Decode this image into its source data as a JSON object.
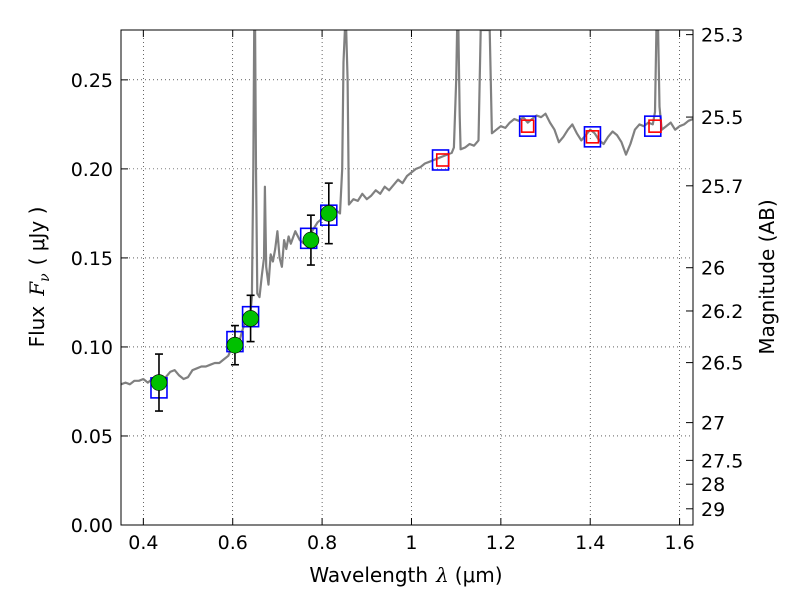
{
  "chart_data": {
    "type": "scatter",
    "title": "",
    "xlabel_pre": "Wavelength",
    "xlabel_sym": "λ",
    "xlabel_unit": "(μm)",
    "ylabel_pre": "Flux",
    "ylabel_sym_main": "F",
    "ylabel_sym_sub": "ν",
    "ylabel_unit": "( μJy )",
    "ylabel_right": "Magnitude (AB)",
    "xlim": [
      0.35,
      1.63
    ],
    "ylim": [
      0.0,
      0.278
    ],
    "grid": true,
    "x_ticks": [
      0.4,
      0.6,
      0.8,
      1.0,
      1.2,
      1.4,
      1.6
    ],
    "x_tick_labels": [
      "0.4",
      "0.6",
      "0.8",
      "1",
      "1.2",
      "1.4",
      "1.6"
    ],
    "y_ticks": [
      0.0,
      0.05,
      0.1,
      0.15,
      0.2,
      0.25
    ],
    "y_tick_labels": [
      "0.00",
      "0.05",
      "0.10",
      "0.15",
      "0.20",
      "0.25"
    ],
    "right_ticks": [
      {
        "flux": 0.2754,
        "label": "25.3"
      },
      {
        "flux": 0.2291,
        "label": "25.5"
      },
      {
        "flux": 0.1905,
        "label": "25.7"
      },
      {
        "flux": 0.1445,
        "label": "26"
      },
      {
        "flux": 0.1202,
        "label": "26.2"
      },
      {
        "flux": 0.0912,
        "label": "26.5"
      },
      {
        "flux": 0.0575,
        "label": "27"
      },
      {
        "flux": 0.0363,
        "label": "27.5"
      },
      {
        "flux": 0.0229,
        "label": "28"
      },
      {
        "flux": 0.0091,
        "label": "29"
      }
    ],
    "series": [
      {
        "kind": "line",
        "color": "#808080",
        "points": [
          [
            0.35,
            0.079
          ],
          [
            0.36,
            0.08
          ],
          [
            0.37,
            0.079
          ],
          [
            0.38,
            0.081
          ],
          [
            0.39,
            0.081
          ],
          [
            0.4,
            0.082
          ],
          [
            0.41,
            0.08
          ],
          [
            0.42,
            0.082
          ],
          [
            0.43,
            0.083
          ],
          [
            0.44,
            0.08
          ],
          [
            0.45,
            0.083
          ],
          [
            0.46,
            0.086
          ],
          [
            0.47,
            0.087
          ],
          [
            0.48,
            0.084
          ],
          [
            0.49,
            0.082
          ],
          [
            0.5,
            0.083
          ],
          [
            0.51,
            0.087
          ],
          [
            0.52,
            0.088
          ],
          [
            0.53,
            0.089
          ],
          [
            0.54,
            0.089
          ],
          [
            0.55,
            0.09
          ],
          [
            0.56,
            0.091
          ],
          [
            0.57,
            0.091
          ],
          [
            0.58,
            0.093
          ],
          [
            0.59,
            0.095
          ],
          [
            0.595,
            0.098
          ],
          [
            0.6,
            0.1
          ],
          [
            0.605,
            0.102
          ],
          [
            0.61,
            0.101
          ],
          [
            0.615,
            0.103
          ],
          [
            0.62,
            0.108
          ],
          [
            0.625,
            0.112
          ],
          [
            0.63,
            0.115
          ],
          [
            0.635,
            0.118
          ],
          [
            0.64,
            0.12
          ],
          [
            0.643,
            0.128
          ],
          [
            0.646,
            0.2
          ],
          [
            0.648,
            0.278
          ],
          [
            0.65,
            0.278
          ],
          [
            0.652,
            0.2
          ],
          [
            0.655,
            0.13
          ],
          [
            0.66,
            0.128
          ],
          [
            0.665,
            0.14
          ],
          [
            0.67,
            0.15
          ],
          [
            0.672,
            0.19
          ],
          [
            0.675,
            0.145
          ],
          [
            0.68,
            0.135
          ],
          [
            0.685,
            0.152
          ],
          [
            0.69,
            0.148
          ],
          [
            0.695,
            0.155
          ],
          [
            0.7,
            0.165
          ],
          [
            0.705,
            0.15
          ],
          [
            0.71,
            0.145
          ],
          [
            0.715,
            0.16
          ],
          [
            0.72,
            0.155
          ],
          [
            0.725,
            0.162
          ],
          [
            0.73,
            0.158
          ],
          [
            0.74,
            0.165
          ],
          [
            0.75,
            0.16
          ],
          [
            0.76,
            0.158
          ],
          [
            0.77,
            0.162
          ],
          [
            0.78,
            0.166
          ],
          [
            0.79,
            0.17
          ],
          [
            0.8,
            0.172
          ],
          [
            0.81,
            0.174
          ],
          [
            0.82,
            0.176
          ],
          [
            0.83,
            0.177
          ],
          [
            0.84,
            0.175
          ],
          [
            0.845,
            0.2
          ],
          [
            0.848,
            0.26
          ],
          [
            0.851,
            0.278
          ],
          [
            0.854,
            0.278
          ],
          [
            0.857,
            0.25
          ],
          [
            0.86,
            0.18
          ],
          [
            0.87,
            0.183
          ],
          [
            0.88,
            0.182
          ],
          [
            0.89,
            0.186
          ],
          [
            0.9,
            0.183
          ],
          [
            0.91,
            0.185
          ],
          [
            0.92,
            0.188
          ],
          [
            0.93,
            0.186
          ],
          [
            0.94,
            0.19
          ],
          [
            0.95,
            0.188
          ],
          [
            0.96,
            0.191
          ],
          [
            0.97,
            0.194
          ],
          [
            0.98,
            0.192
          ],
          [
            0.99,
            0.196
          ],
          [
            1.0,
            0.198
          ],
          [
            1.01,
            0.2
          ],
          [
            1.02,
            0.201
          ],
          [
            1.03,
            0.203
          ],
          [
            1.04,
            0.204
          ],
          [
            1.05,
            0.205
          ],
          [
            1.06,
            0.206
          ],
          [
            1.07,
            0.207
          ],
          [
            1.08,
            0.208
          ],
          [
            1.09,
            0.209
          ],
          [
            1.095,
            0.212
          ],
          [
            1.1,
            0.25
          ],
          [
            1.102,
            0.278
          ],
          [
            1.105,
            0.278
          ],
          [
            1.108,
            0.23
          ],
          [
            1.11,
            0.211
          ],
          [
            1.12,
            0.212
          ],
          [
            1.13,
            0.214
          ],
          [
            1.14,
            0.213
          ],
          [
            1.15,
            0.216
          ],
          [
            1.155,
            0.278
          ],
          [
            1.16,
            0.278
          ],
          [
            1.163,
            0.278
          ],
          [
            1.168,
            0.278
          ],
          [
            1.175,
            0.278
          ],
          [
            1.18,
            0.22
          ],
          [
            1.19,
            0.222
          ],
          [
            1.2,
            0.224
          ],
          [
            1.21,
            0.223
          ],
          [
            1.22,
            0.226
          ],
          [
            1.23,
            0.228
          ],
          [
            1.24,
            0.227
          ],
          [
            1.25,
            0.229
          ],
          [
            1.26,
            0.226
          ],
          [
            1.27,
            0.228
          ],
          [
            1.28,
            0.23
          ],
          [
            1.29,
            0.229
          ],
          [
            1.3,
            0.231
          ],
          [
            1.31,
            0.226
          ],
          [
            1.32,
            0.222
          ],
          [
            1.33,
            0.215
          ],
          [
            1.34,
            0.218
          ],
          [
            1.35,
            0.222
          ],
          [
            1.36,
            0.225
          ],
          [
            1.37,
            0.22
          ],
          [
            1.38,
            0.216
          ],
          [
            1.39,
            0.219
          ],
          [
            1.4,
            0.222
          ],
          [
            1.41,
            0.22
          ],
          [
            1.42,
            0.216
          ],
          [
            1.43,
            0.214
          ],
          [
            1.44,
            0.218
          ],
          [
            1.45,
            0.221
          ],
          [
            1.46,
            0.219
          ],
          [
            1.47,
            0.215
          ],
          [
            1.48,
            0.208
          ],
          [
            1.49,
            0.214
          ],
          [
            1.5,
            0.222
          ],
          [
            1.51,
            0.225
          ],
          [
            1.52,
            0.224
          ],
          [
            1.53,
            0.226
          ],
          [
            1.54,
            0.225
          ],
          [
            1.545,
            0.232
          ],
          [
            1.548,
            0.278
          ],
          [
            1.552,
            0.278
          ],
          [
            1.555,
            0.235
          ],
          [
            1.56,
            0.222
          ],
          [
            1.57,
            0.224
          ],
          [
            1.58,
            0.226
          ],
          [
            1.59,
            0.222
          ],
          [
            1.6,
            0.224
          ],
          [
            1.61,
            0.225
          ],
          [
            1.62,
            0.227
          ],
          [
            1.63,
            0.228
          ]
        ]
      },
      {
        "kind": "model_points",
        "marker": "square",
        "color": "#0000ff",
        "points": [
          [
            0.435,
            0.077
          ],
          [
            0.605,
            0.103
          ],
          [
            0.64,
            0.117
          ],
          [
            0.77,
            0.161
          ],
          [
            0.815,
            0.174
          ],
          [
            1.065,
            0.205
          ],
          [
            1.26,
            0.224
          ],
          [
            1.405,
            0.218
          ],
          [
            1.54,
            0.224
          ]
        ]
      },
      {
        "kind": "measured_points",
        "marker": "circle",
        "color": "#00c000",
        "points": [
          {
            "x": 0.435,
            "y": 0.08,
            "err": 0.016
          },
          {
            "x": 0.605,
            "y": 0.101,
            "err": 0.011
          },
          {
            "x": 0.64,
            "y": 0.116,
            "err": 0.013
          },
          {
            "x": 0.775,
            "y": 0.16,
            "err": 0.014
          },
          {
            "x": 0.815,
            "y": 0.175,
            "err": 0.017
          }
        ]
      },
      {
        "kind": "upper_limits",
        "marker": "square",
        "color": "#ff0000",
        "points": [
          [
            1.07,
            0.205
          ],
          [
            1.26,
            0.224
          ],
          [
            1.405,
            0.218
          ],
          [
            1.545,
            0.224
          ]
        ]
      }
    ]
  }
}
